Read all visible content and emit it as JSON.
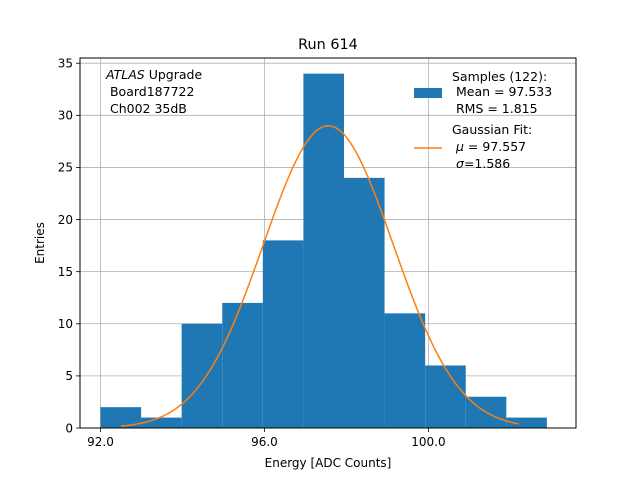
{
  "chart_data": {
    "type": "bar",
    "title": "Run 614",
    "xlabel": "Energy [ADC Counts]",
    "ylabel": "Entries",
    "xlim": [
      91.5,
      103.6
    ],
    "ylim": [
      0,
      35.5
    ],
    "grid": true,
    "x_ticks": [
      92.0,
      96.0,
      100.0
    ],
    "x_tick_labels": [
      "92.0",
      "96.0",
      "100.0"
    ],
    "y_ticks": [
      0,
      5,
      10,
      15,
      20,
      25,
      30,
      35
    ],
    "y_tick_labels": [
      "0",
      "5",
      "10",
      "15",
      "20",
      "25",
      "30",
      "35"
    ],
    "bin_edges": [
      92.0,
      92.99,
      93.98,
      94.97,
      95.96,
      96.95,
      97.94,
      98.93,
      99.92,
      100.91,
      101.9,
      102.89
    ],
    "counts": [
      2,
      1,
      10,
      12,
      18,
      34,
      24,
      11,
      6,
      3,
      1
    ],
    "fit": {
      "mu": 97.557,
      "sigma": 1.586,
      "amplitude": 29.0,
      "x_range": [
        92.5,
        102.2
      ]
    },
    "colors": {
      "histogram": "#1f77b4",
      "fit": "#ff7f0e",
      "grid": "#b0b0b0"
    },
    "annotation": {
      "experiment": "ATLAS",
      "experiment_suffix": " Upgrade",
      "board": " Board187722",
      "channel": " Ch002 35dB"
    },
    "legend": {
      "position": "top-right",
      "samples_title": "Samples (122):",
      "samples_mean": " Mean = 97.533",
      "samples_rms": " RMS = 1.815",
      "fit_title": "Gaussian Fit:",
      "fit_mu_symbol": "μ",
      "fit_mu_value": " = 97.557",
      "fit_sigma_symbol": "σ",
      "fit_sigma_value": "=1.586"
    }
  }
}
